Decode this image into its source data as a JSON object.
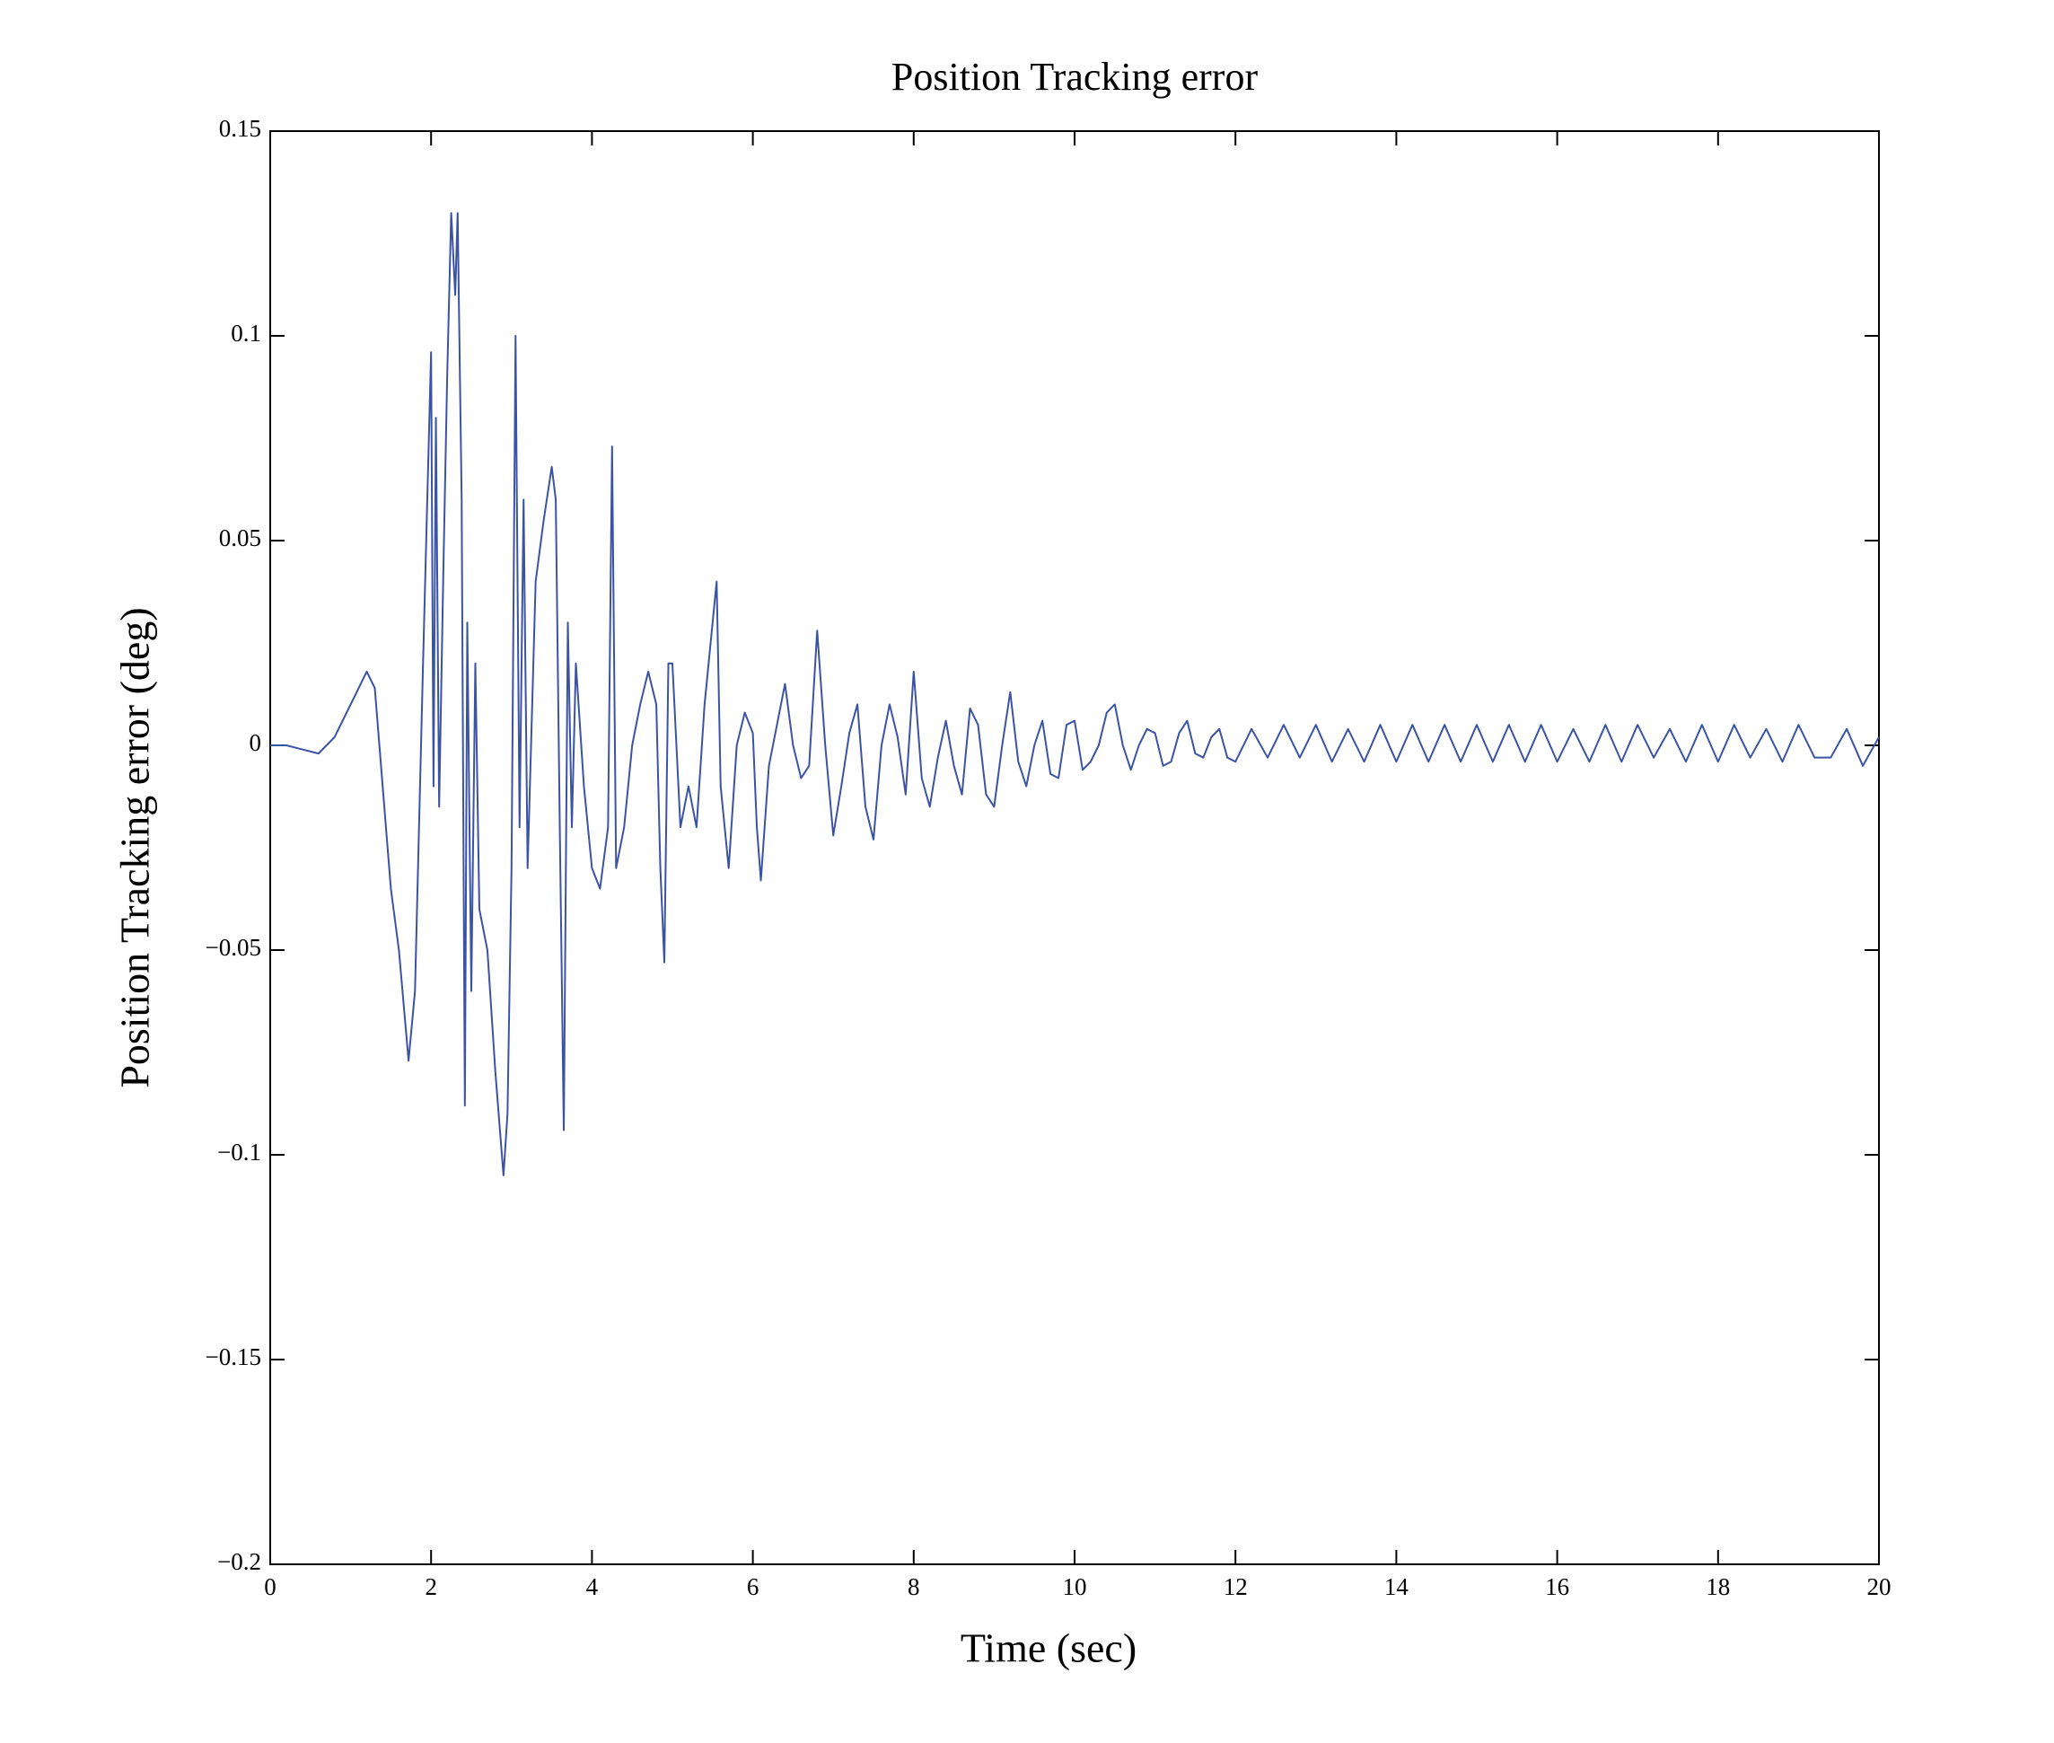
{
  "chart_data": {
    "type": "line",
    "title": "Position Tracking error",
    "xlabel": "Time (sec)",
    "ylabel": "Position Tracking error (deg)",
    "xlim": [
      0,
      20
    ],
    "ylim": [
      -0.2,
      0.15
    ],
    "xticks": [
      0,
      2,
      4,
      6,
      8,
      10,
      12,
      14,
      16,
      18,
      20
    ],
    "yticks": [
      {
        "value": -0.2,
        "label": "−0.2"
      },
      {
        "value": -0.15,
        "label": "−0.15"
      },
      {
        "value": -0.1,
        "label": "−0.1"
      },
      {
        "value": -0.05,
        "label": "−0.05"
      },
      0,
      0.05,
      0.1,
      0.15
    ],
    "grid": false,
    "x": [
      0,
      0.2,
      0.4,
      0.6,
      0.8,
      1.0,
      1.2,
      1.3,
      1.5,
      1.6,
      1.72,
      1.8,
      1.9,
      2.0,
      2.03,
      2.06,
      2.1,
      2.15,
      2.2,
      2.25,
      2.3,
      2.33,
      2.38,
      2.42,
      2.45,
      2.5,
      2.55,
      2.6,
      2.7,
      2.8,
      2.9,
      2.95,
      3.0,
      3.05,
      3.1,
      3.15,
      3.2,
      3.3,
      3.4,
      3.5,
      3.55,
      3.6,
      3.65,
      3.7,
      3.75,
      3.8,
      3.9,
      4.0,
      4.1,
      4.2,
      4.25,
      4.3,
      4.4,
      4.5,
      4.6,
      4.7,
      4.8,
      4.85,
      4.9,
      4.95,
      5.0,
      5.1,
      5.2,
      5.3,
      5.4,
      5.5,
      5.55,
      5.6,
      5.7,
      5.8,
      5.9,
      6.0,
      6.05,
      6.1,
      6.2,
      6.3,
      6.4,
      6.5,
      6.6,
      6.7,
      6.8,
      6.9,
      7.0,
      7.1,
      7.2,
      7.3,
      7.4,
      7.5,
      7.6,
      7.7,
      7.8,
      7.9,
      8.0,
      8.1,
      8.2,
      8.3,
      8.4,
      8.5,
      8.6,
      8.7,
      8.8,
      8.9,
      9.0,
      9.1,
      9.2,
      9.3,
      9.4,
      9.5,
      9.6,
      9.7,
      9.8,
      9.9,
      10.0,
      10.1,
      10.2,
      10.3,
      10.4,
      10.5,
      10.6,
      10.7,
      10.8,
      10.9,
      11.0,
      11.1,
      11.2,
      11.3,
      11.4,
      11.5,
      11.6,
      11.7,
      11.8,
      11.9,
      12.0,
      12.2,
      12.4,
      12.6,
      12.8,
      13.0,
      13.2,
      13.4,
      13.6,
      13.8,
      14.0,
      14.2,
      14.4,
      14.6,
      14.8,
      15.0,
      15.2,
      15.4,
      15.6,
      15.8,
      16.0,
      16.2,
      16.4,
      16.6,
      16.8,
      17.0,
      17.2,
      17.4,
      17.6,
      17.8,
      18.0,
      18.2,
      18.4,
      18.6,
      18.8,
      19.0,
      19.2,
      19.4,
      19.6,
      19.8,
      20.0
    ],
    "series": [
      {
        "color": "#3a53a4",
        "values": [
          0,
          0,
          -0.001,
          -0.002,
          0.002,
          0.01,
          0.018,
          0.014,
          -0.035,
          -0.05,
          -0.077,
          -0.06,
          0.02,
          0.096,
          -0.01,
          0.08,
          -0.015,
          0.04,
          0.09,
          0.13,
          0.11,
          0.13,
          0.06,
          -0.088,
          0.03,
          -0.06,
          0.02,
          -0.04,
          -0.05,
          -0.08,
          -0.105,
          -0.09,
          -0.03,
          0.1,
          -0.02,
          0.06,
          -0.03,
          0.04,
          0.055,
          0.068,
          0.06,
          -0.02,
          -0.094,
          0.03,
          -0.02,
          0.02,
          -0.01,
          -0.03,
          -0.035,
          -0.02,
          0.073,
          -0.03,
          -0.02,
          0.0,
          0.01,
          0.018,
          0.01,
          -0.03,
          -0.053,
          0.02,
          0.02,
          -0.02,
          -0.01,
          -0.02,
          0.01,
          0.03,
          0.04,
          -0.01,
          -0.03,
          0.0,
          0.008,
          0.003,
          -0.02,
          -0.033,
          -0.005,
          0.005,
          0.015,
          0.0,
          -0.008,
          -0.005,
          0.028,
          0.0,
          -0.022,
          -0.01,
          0.003,
          0.01,
          -0.015,
          -0.023,
          0.0,
          0.01,
          0.002,
          -0.012,
          0.018,
          -0.008,
          -0.015,
          -0.003,
          0.006,
          -0.005,
          -0.012,
          0.009,
          0.005,
          -0.012,
          -0.015,
          0.0,
          0.013,
          -0.004,
          -0.01,
          0.0,
          0.006,
          -0.007,
          -0.008,
          0.005,
          0.006,
          -0.006,
          -0.004,
          0.0,
          0.008,
          0.01,
          0.0,
          -0.006,
          0.0,
          0.004,
          0.003,
          -0.005,
          -0.004,
          0.003,
          0.006,
          -0.002,
          -0.003,
          0.002,
          0.004,
          -0.003,
          -0.004,
          0.004,
          -0.003,
          0.005,
          -0.003,
          0.005,
          -0.004,
          0.004,
          -0.004,
          0.005,
          -0.004,
          0.005,
          -0.004,
          0.005,
          -0.004,
          0.005,
          -0.004,
          0.005,
          -0.004,
          0.005,
          -0.004,
          0.004,
          -0.004,
          0.005,
          -0.004,
          0.005,
          -0.003,
          0.004,
          -0.004,
          0.005,
          -0.004,
          0.005,
          -0.003,
          0.004,
          -0.004,
          0.005,
          -0.003,
          -0.003,
          0.004,
          -0.005,
          0.002
        ]
      }
    ]
  }
}
